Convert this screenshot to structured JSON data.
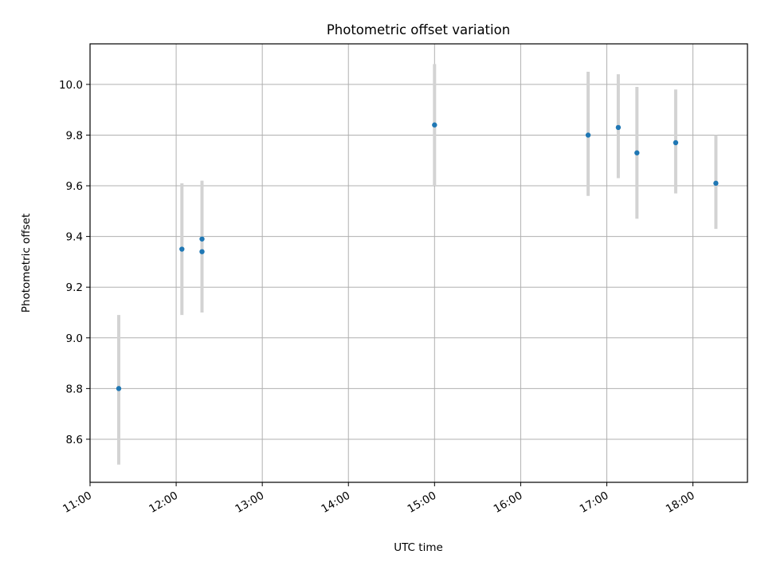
{
  "chart_data": {
    "type": "scatter",
    "title": "Photometric offset variation",
    "xlabel": "UTC time",
    "ylabel": "Photometric offset",
    "x_axis_type": "time",
    "xlim": [
      "11:00",
      "18:38"
    ],
    "ylim": [
      8.43,
      10.16
    ],
    "x_ticks": [
      "11:00",
      "12:00",
      "13:00",
      "14:00",
      "15:00",
      "16:00",
      "17:00",
      "18:00"
    ],
    "y_ticks": [
      8.6,
      8.8,
      9.0,
      9.2,
      9.4,
      9.6,
      9.8,
      10.0
    ],
    "y_tick_labels": [
      "8.6",
      "8.8",
      "9.0",
      "9.2",
      "9.4",
      "9.6",
      "9.8",
      "10.0"
    ],
    "grid": true,
    "legend": "none",
    "points": [
      {
        "x": "11:20",
        "y": 8.8,
        "ymin": 8.5,
        "ymax": 9.09
      },
      {
        "x": "12:04",
        "y": 9.35,
        "ymin": 9.09,
        "ymax": 9.61
      },
      {
        "x": "12:18",
        "y": 9.39,
        "ymin": 9.16,
        "ymax": 9.62
      },
      {
        "x": "12:18",
        "y": 9.34,
        "ymin": 9.1,
        "ymax": 9.58
      },
      {
        "x": "15:00",
        "y": 9.84,
        "ymin": 9.6,
        "ymax": 10.08
      },
      {
        "x": "16:47",
        "y": 9.8,
        "ymin": 9.56,
        "ymax": 10.05
      },
      {
        "x": "17:08",
        "y": 9.83,
        "ymin": 9.63,
        "ymax": 10.04
      },
      {
        "x": "17:21",
        "y": 9.73,
        "ymin": 9.47,
        "ymax": 9.99
      },
      {
        "x": "17:48",
        "y": 9.77,
        "ymin": 9.57,
        "ymax": 9.98
      },
      {
        "x": "18:16",
        "y": 9.61,
        "ymin": 9.43,
        "ymax": 9.8
      }
    ],
    "colors": {
      "point": "#1f77b4",
      "errorbar": "#d3d3d3",
      "grid": "#b0b0b0",
      "axes": "#000000"
    }
  }
}
